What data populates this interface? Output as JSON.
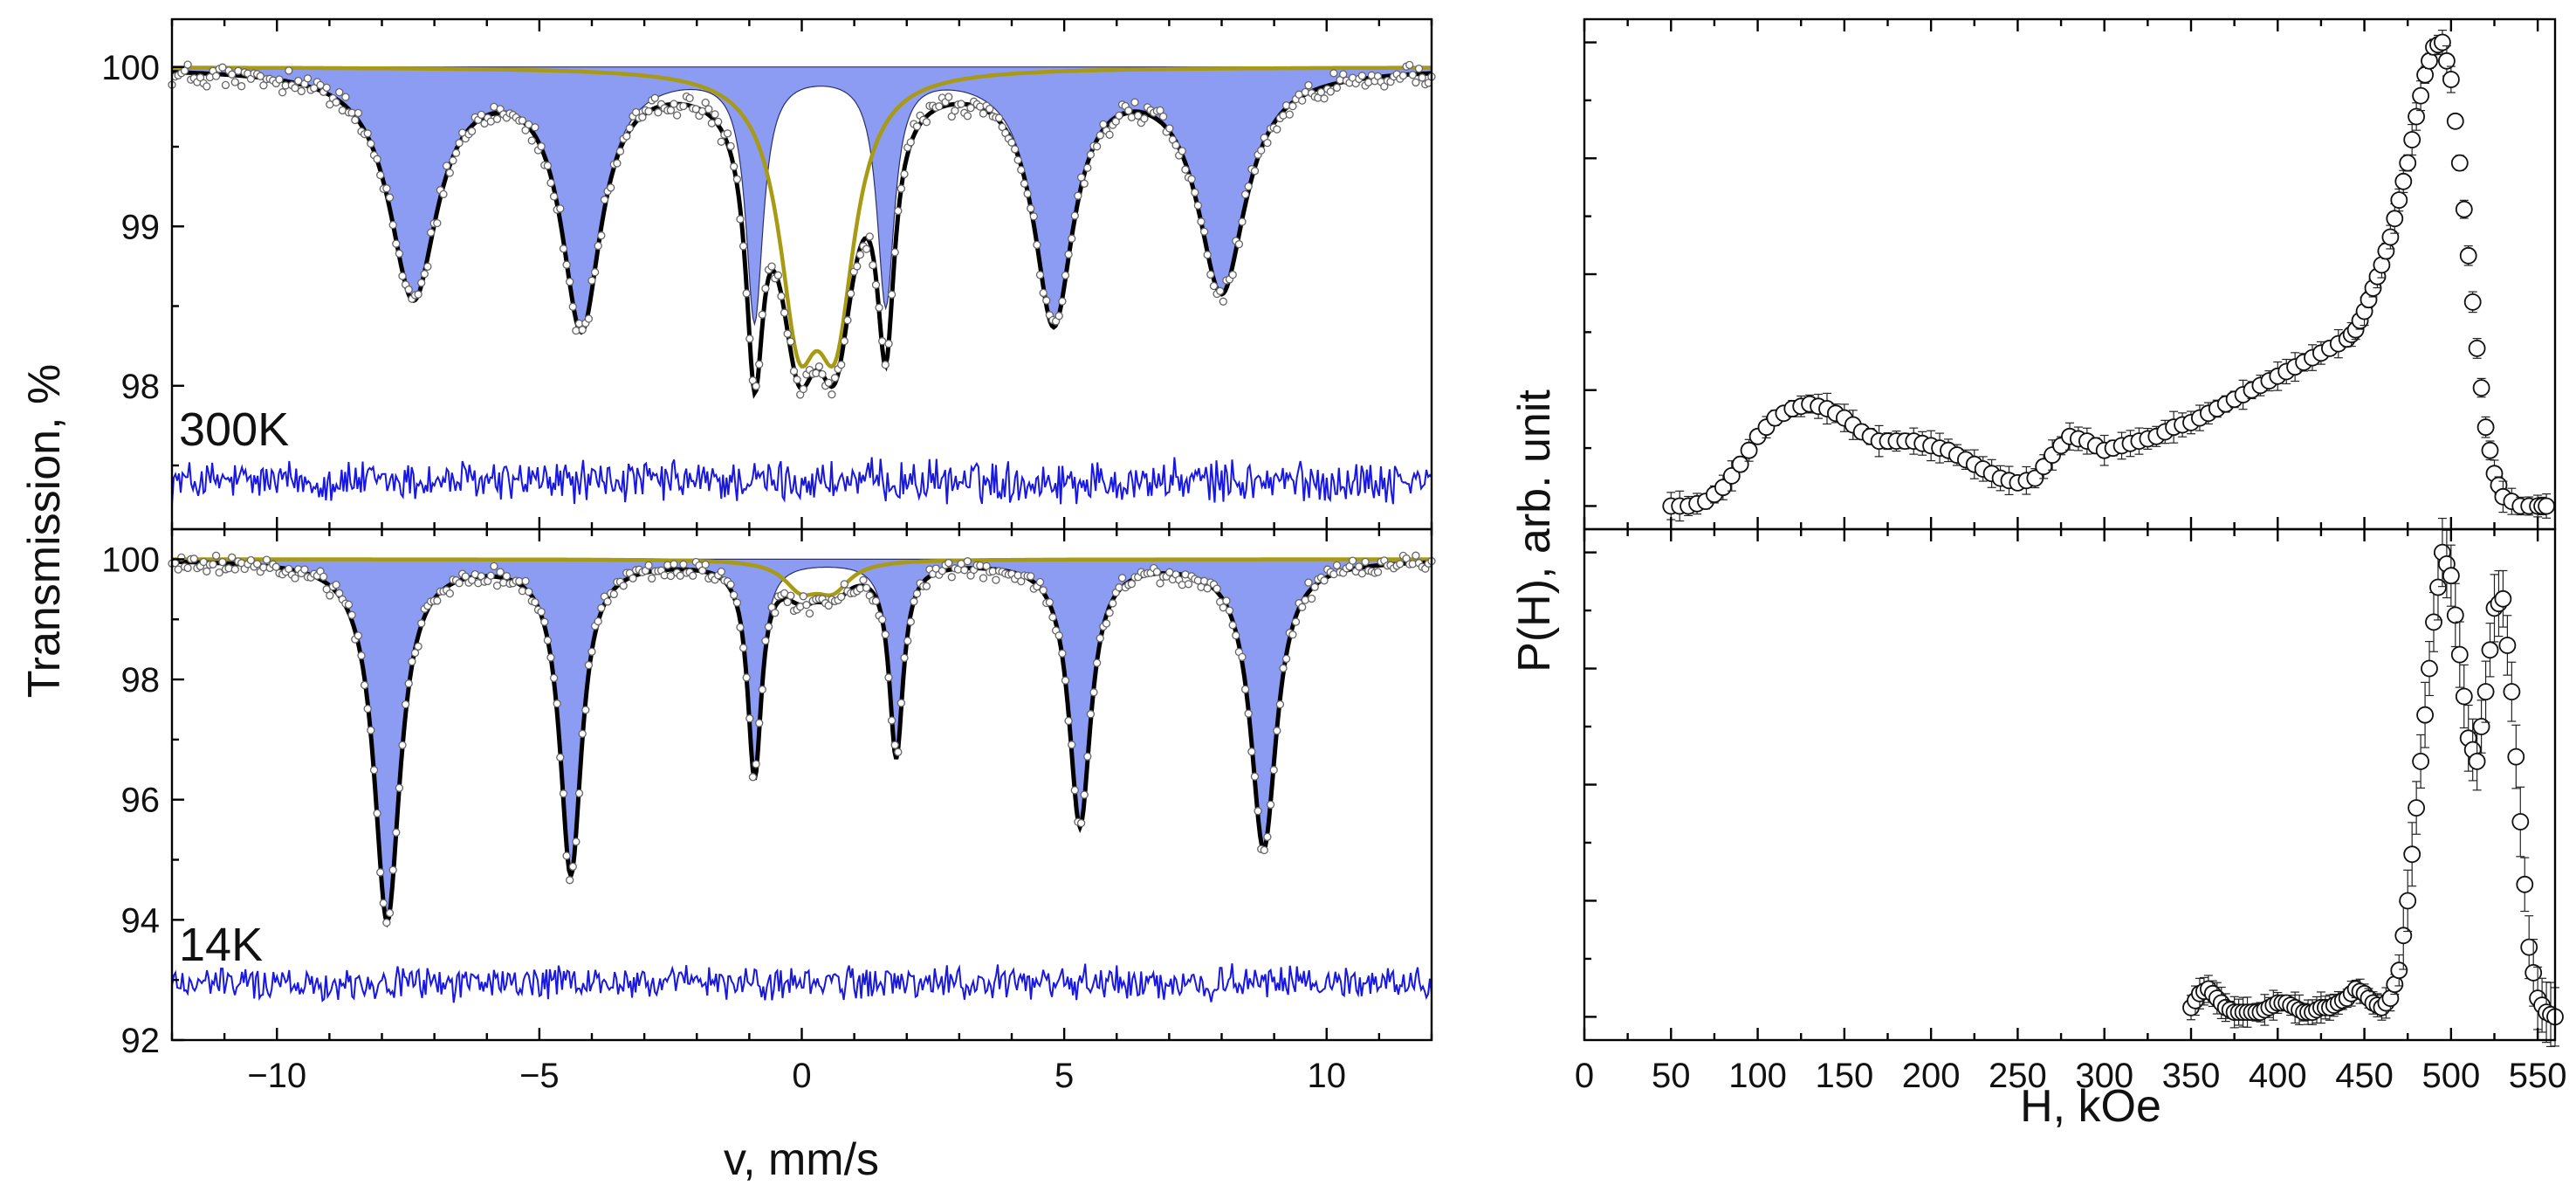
{
  "figure": {
    "colors": {
      "subspectrum_fill": "#8c9cf3",
      "subspectrum_stroke": "#2d2f6b",
      "doublet_curve": "#a89a12",
      "fit_curve": "#000000",
      "residual": "#1818e0",
      "data_points": "#666666"
    }
  },
  "chart_data": [
    {
      "id": "spectrum-300K",
      "type": "line",
      "panel_label": "300K",
      "title": "",
      "xlabel": "v, mm/s",
      "ylabel": "Transmission, %",
      "xlim": [
        -12,
        12
      ],
      "ylim": [
        97.1,
        100.3
      ],
      "yticks": [
        98,
        99,
        100
      ],
      "ytick_labels": [
        "98",
        "99",
        "100"
      ],
      "sextet": {
        "name": "magnetic sextet (filled)",
        "positions_mm_s": [
          -7.4,
          -4.2,
          -0.9,
          1.6,
          4.8,
          8.0
        ],
        "depths_percent": [
          1.42,
          1.58,
          1.55,
          1.45,
          1.55,
          1.38
        ],
        "hwhm_mm_s": [
          0.55,
          0.45,
          0.2,
          0.2,
          0.45,
          0.55
        ]
      },
      "doublet": {
        "name": "paramagnetic doublet",
        "center_mm_s": 0.29,
        "quadrupole_splitting_mm_s": 0.7,
        "depth_percent": 1.43,
        "hwhm_mm_s": 0.45
      },
      "fit": {
        "name": "total fit",
        "description": "sum of sextet and doublet",
        "min_transmission": 97.8
      },
      "residual": {
        "name": "fit residual",
        "baseline": 97.4,
        "amplitude": 0.13
      }
    },
    {
      "id": "spectrum-14K",
      "type": "line",
      "panel_label": "14K",
      "title": "",
      "xlabel": "v, mm/s",
      "ylabel": "Transmission, %",
      "xlim": [
        -12,
        12
      ],
      "ylim": [
        92.0,
        100.5
      ],
      "xticks": [
        -10,
        -5,
        0,
        5,
        10
      ],
      "xtick_labels": [
        "−10",
        "−5",
        "0",
        "5",
        "10"
      ],
      "yticks": [
        92,
        94,
        96,
        98,
        100
      ],
      "ytick_labels": [
        "92",
        "94",
        "96",
        "98",
        "100"
      ],
      "sextet": {
        "name": "magnetic sextet (filled)",
        "positions_mm_s": [
          -7.9,
          -4.4,
          -0.9,
          1.8,
          5.3,
          8.8
        ],
        "depths_percent": [
          6.0,
          5.2,
          3.5,
          3.2,
          4.4,
          4.8
        ],
        "hwhm_mm_s": [
          0.3,
          0.25,
          0.16,
          0.16,
          0.25,
          0.3
        ]
      },
      "doublet": {
        "name": "paramagnetic doublet",
        "center_mm_s": 0.29,
        "quadrupole_splitting_mm_s": 0.6,
        "depth_percent": 0.45,
        "hwhm_mm_s": 0.4
      },
      "fit": {
        "name": "total fit",
        "description": "sum of sextet and doublet",
        "min_transmission": 94.0
      },
      "residual": {
        "name": "fit residual",
        "baseline": 92.95,
        "amplitude": 0.28
      }
    },
    {
      "id": "hyperfine-field-distribution-300K",
      "type": "scatter",
      "title": "",
      "xlabel": "H, kOe",
      "ylabel": "P(H), arb. unit",
      "xlim": [
        0,
        560
      ],
      "ylim": [
        -0.05,
        1.05
      ],
      "error_bars": true,
      "series": [
        {
          "name": "P(H) 300K",
          "x": [
            50,
            60,
            70,
            80,
            90,
            100,
            110,
            120,
            130,
            140,
            150,
            160,
            170,
            180,
            190,
            200,
            210,
            220,
            230,
            240,
            250,
            260,
            270,
            280,
            290,
            300,
            310,
            320,
            330,
            340,
            350,
            360,
            370,
            380,
            390,
            400,
            410,
            420,
            430,
            440,
            445,
            450,
            455,
            460,
            465,
            470,
            475,
            480,
            485,
            490,
            495,
            500,
            505,
            510,
            515,
            520,
            525,
            530,
            540,
            550,
            555
          ],
          "y": [
            0.0,
            0.0,
            0.01,
            0.04,
            0.09,
            0.15,
            0.19,
            0.21,
            0.22,
            0.21,
            0.19,
            0.16,
            0.14,
            0.14,
            0.14,
            0.13,
            0.12,
            0.1,
            0.08,
            0.06,
            0.05,
            0.06,
            0.11,
            0.15,
            0.14,
            0.12,
            0.13,
            0.14,
            0.15,
            0.17,
            0.18,
            0.2,
            0.22,
            0.24,
            0.26,
            0.28,
            0.3,
            0.32,
            0.34,
            0.36,
            0.38,
            0.42,
            0.47,
            0.52,
            0.58,
            0.66,
            0.74,
            0.84,
            0.93,
            0.99,
            1.0,
            0.92,
            0.74,
            0.54,
            0.34,
            0.17,
            0.07,
            0.02,
            0.0,
            0.0,
            0.0
          ]
        }
      ]
    },
    {
      "id": "hyperfine-field-distribution-14K",
      "type": "scatter",
      "title": "",
      "xlabel": "H, kOe",
      "ylabel": "P(H), arb. unit",
      "xlim": [
        0,
        560
      ],
      "ylim": [
        -0.05,
        1.05
      ],
      "xticks": [
        0,
        50,
        100,
        150,
        200,
        250,
        300,
        350,
        400,
        450,
        500,
        550
      ],
      "xtick_labels": [
        "0",
        "50",
        "100",
        "150",
        "200",
        "250",
        "300",
        "350",
        "400",
        "450",
        "500",
        "550"
      ],
      "error_bars": true,
      "series": [
        {
          "name": "P(H) 14K",
          "x": [
            350,
            355,
            360,
            365,
            370,
            375,
            380,
            385,
            390,
            395,
            400,
            405,
            410,
            415,
            420,
            425,
            430,
            435,
            440,
            445,
            450,
            455,
            460,
            465,
            470,
            475,
            480,
            485,
            490,
            495,
            500,
            505,
            510,
            515,
            520,
            525,
            530,
            535,
            540,
            545,
            550,
            555,
            560
          ],
          "y": [
            0.02,
            0.05,
            0.06,
            0.04,
            0.02,
            0.01,
            0.01,
            0.01,
            0.01,
            0.02,
            0.03,
            0.03,
            0.02,
            0.01,
            0.01,
            0.02,
            0.02,
            0.03,
            0.04,
            0.06,
            0.05,
            0.03,
            0.02,
            0.04,
            0.1,
            0.25,
            0.45,
            0.65,
            0.85,
            1.0,
            0.95,
            0.78,
            0.6,
            0.55,
            0.7,
            0.88,
            0.9,
            0.7,
            0.42,
            0.15,
            0.04,
            0.01,
            0.0
          ]
        }
      ]
    }
  ]
}
